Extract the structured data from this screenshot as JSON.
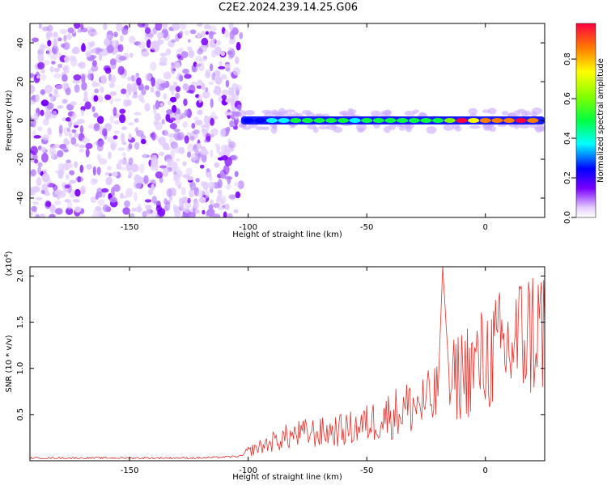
{
  "title": "C2E2.2024.239.14.25.G06",
  "chart_data": [
    {
      "type": "heatmap",
      "xlabel": "Height of straight line (km)",
      "ylabel": "Frequency (Hz)",
      "xlim": [
        -192,
        25
      ],
      "ylim": [
        -50,
        50
      ],
      "xticks": [
        -150,
        -100,
        -50,
        0
      ],
      "yticks": [
        -40,
        -20,
        0,
        20,
        40
      ],
      "noise_region_x": [
        -192,
        -103
      ],
      "signal_band": {
        "x_start": -103,
        "x_end": 25,
        "center_frequency_hz": 0,
        "points": [
          {
            "x": -100,
            "amp": 0.2
          },
          {
            "x": -95,
            "amp": 0.25
          },
          {
            "x": -90,
            "amp": 0.3
          },
          {
            "x": -85,
            "amp": 0.35
          },
          {
            "x": -80,
            "amp": 0.4
          },
          {
            "x": -75,
            "amp": 0.45
          },
          {
            "x": -70,
            "amp": 0.5
          },
          {
            "x": -65,
            "amp": 0.4
          },
          {
            "x": -60,
            "amp": 0.4
          },
          {
            "x": -55,
            "amp": 0.35
          },
          {
            "x": -50,
            "amp": 0.4
          },
          {
            "x": -45,
            "amp": 0.45
          },
          {
            "x": -40,
            "amp": 0.45
          },
          {
            "x": -35,
            "amp": 0.5
          },
          {
            "x": -30,
            "amp": 0.4
          },
          {
            "x": -25,
            "amp": 0.5
          },
          {
            "x": -20,
            "amp": 0.4
          },
          {
            "x": -15,
            "amp": 0.6
          },
          {
            "x": -10,
            "amp": 0.9
          },
          {
            "x": -5,
            "amp": 0.75
          },
          {
            "x": 0,
            "amp": 0.85
          },
          {
            "x": 5,
            "amp": 0.8
          },
          {
            "x": 10,
            "amp": 0.85
          },
          {
            "x": 15,
            "amp": 0.9
          },
          {
            "x": 20,
            "amp": 0.85
          }
        ]
      },
      "colorbar": {
        "label": "Normalized spectral amplitude",
        "range": [
          0,
          0.98
        ],
        "ticks": [
          0.0,
          0.2,
          0.4,
          0.6,
          0.8
        ]
      }
    },
    {
      "type": "line",
      "xlabel": "Height of straight line (km)",
      "ylabel": "SNR (10 * v/v)",
      "y_multiplier_label": "(x10",
      "y_multiplier_exponent": "4",
      "y_multiplier_suffix": ")",
      "xlim": [
        -192,
        25
      ],
      "ylim": [
        0,
        2.1
      ],
      "xticks": [
        -150,
        -100,
        -50,
        0
      ],
      "yticks": [
        0.5,
        1.0,
        1.5,
        2.0
      ],
      "series": [
        {
          "color": "#e8302a",
          "x": [
            -192,
            -180,
            -170,
            -160,
            -150,
            -140,
            -130,
            -120,
            -110,
            -103,
            -100,
            -95,
            -90,
            -85,
            -80,
            -75,
            -70,
            -65,
            -60,
            -55,
            -50,
            -45,
            -40,
            -35,
            -30,
            -25,
            -20,
            -18,
            -15,
            -12,
            -10,
            -8,
            -5,
            -3,
            0,
            3,
            6,
            10,
            13,
            16,
            20,
            25
          ],
          "y": [
            0.03,
            0.03,
            0.03,
            0.03,
            0.03,
            0.03,
            0.03,
            0.03,
            0.04,
            0.05,
            0.1,
            0.15,
            0.2,
            0.25,
            0.28,
            0.3,
            0.3,
            0.32,
            0.33,
            0.36,
            0.4,
            0.45,
            0.5,
            0.55,
            0.6,
            0.62,
            0.7,
            2.1,
            0.8,
            0.9,
            0.95,
            1.0,
            1.0,
            1.05,
            1.1,
            1.15,
            1.2,
            1.2,
            1.3,
            1.35,
            1.4,
            1.47
          ]
        }
      ]
    }
  ]
}
